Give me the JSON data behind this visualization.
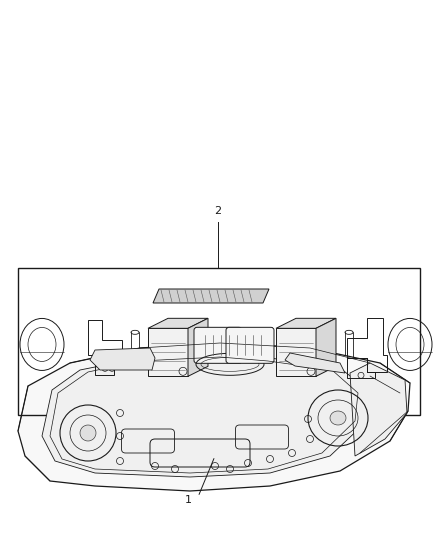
{
  "background_color": "#ffffff",
  "line_color": "#1a1a1a",
  "fig_width": 4.38,
  "fig_height": 5.33,
  "dpi": 100,
  "label_1": "1",
  "label_2": "2"
}
